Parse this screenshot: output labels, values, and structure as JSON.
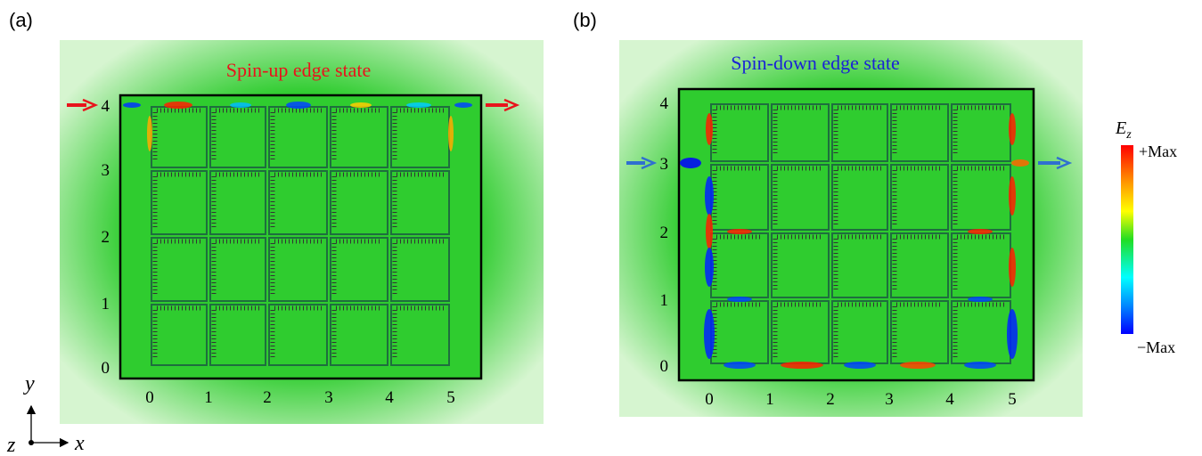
{
  "panels": [
    {
      "label": "(a)",
      "title": "Spin-up edge state",
      "x_ticks": [
        0,
        1,
        2,
        3,
        4,
        5
      ],
      "y_ticks": [
        4,
        3,
        2,
        1,
        0
      ]
    },
    {
      "label": "(b)",
      "title": "Spin-down edge state",
      "x_ticks": [
        0,
        1,
        2,
        3,
        4,
        5
      ],
      "y_ticks": [
        4,
        3,
        2,
        1,
        0
      ]
    }
  ],
  "colorbar": {
    "label": "E",
    "subscript": "z",
    "max_label": "+Max",
    "min_label": "−Max"
  },
  "axes": {
    "x": "x",
    "y": "y",
    "z": "z"
  }
}
